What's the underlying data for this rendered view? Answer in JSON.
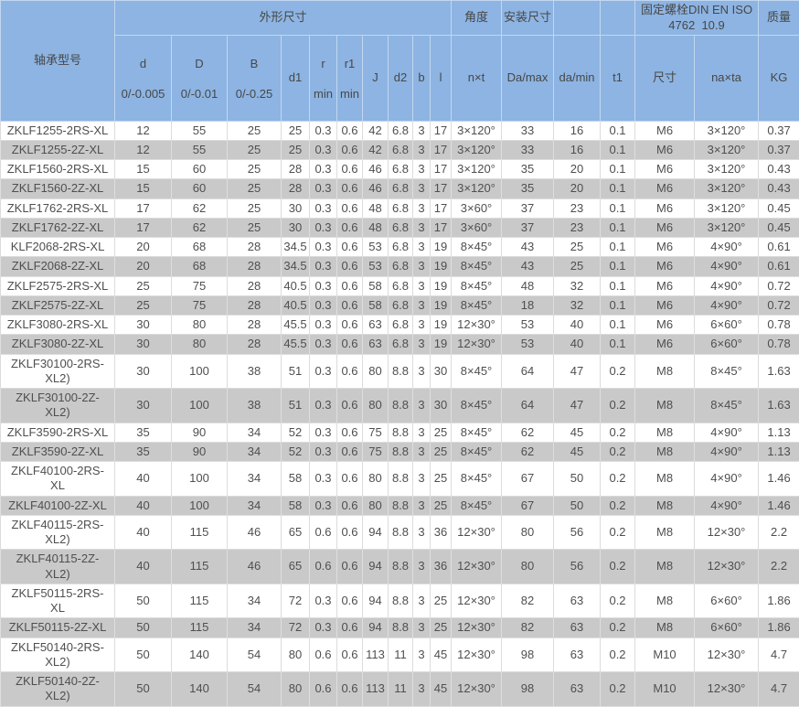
{
  "colors": {
    "header_bg": "#8db4e2",
    "row_alt_bg": "#c9c9c9"
  },
  "table": {
    "header": {
      "model": "轴承型号",
      "groups": {
        "dims": "外形尺寸",
        "angle": "角度",
        "mount": "安装尺寸",
        "blank_a": "",
        "blank_b": "",
        "bolt": "固定螺栓DIN EN ISO\n4762  10.9",
        "mass": "质量"
      },
      "cols": [
        {
          "label": "d",
          "sub": "0/-0.005"
        },
        {
          "label": "D",
          "sub": "0/-0.01"
        },
        {
          "label": "B",
          "sub": "0/-0.25"
        },
        {
          "label": "d1",
          "sub": ""
        },
        {
          "label": "r",
          "sub": "min"
        },
        {
          "label": "r1",
          "sub": "min"
        },
        {
          "label": "J",
          "sub": ""
        },
        {
          "label": "d2",
          "sub": ""
        },
        {
          "label": "b",
          "sub": ""
        },
        {
          "label": "l",
          "sub": ""
        },
        {
          "label": "n×t",
          "sub": ""
        },
        {
          "label": "Da/max",
          "sub": ""
        },
        {
          "label": "da/min",
          "sub": ""
        },
        {
          "label": "t1",
          "sub": ""
        },
        {
          "label": "尺寸",
          "sub": ""
        },
        {
          "label": "na×ta",
          "sub": ""
        },
        {
          "label": "KG",
          "sub": ""
        }
      ]
    },
    "rows": [
      [
        "ZKLF1255-2RS-XL",
        "12",
        "55",
        "25",
        "25",
        "0.3",
        "0.6",
        "42",
        "6.8",
        "3",
        "17",
        "3×120°",
        "33",
        "16",
        "0.1",
        "M6",
        "3×120°",
        "0.37"
      ],
      [
        "ZKLF1255-2Z-XL",
        "12",
        "55",
        "25",
        "25",
        "0.3",
        "0.6",
        "42",
        "6.8",
        "3",
        "17",
        "3×120°",
        "33",
        "16",
        "0.1",
        "M6",
        "3×120°",
        "0.37"
      ],
      [
        "ZKLF1560-2RS-XL",
        "15",
        "60",
        "25",
        "28",
        "0.3",
        "0.6",
        "46",
        "6.8",
        "3",
        "17",
        "3×120°",
        "35",
        "20",
        "0.1",
        "M6",
        "3×120°",
        "0.43"
      ],
      [
        "ZKLF1560-2Z-XL",
        "15",
        "60",
        "25",
        "28",
        "0.3",
        "0.6",
        "46",
        "6.8",
        "3",
        "17",
        "3×120°",
        "35",
        "20",
        "0.1",
        "M6",
        "3×120°",
        "0.43"
      ],
      [
        "ZKLF1762-2RS-XL",
        "17",
        "62",
        "25",
        "30",
        "0.3",
        "0.6",
        "48",
        "6.8",
        "3",
        "17",
        "3×60°",
        "37",
        "23",
        "0.1",
        "M6",
        "3×120°",
        "0.45"
      ],
      [
        "ZKLF1762-2Z-XL",
        "17",
        "62",
        "25",
        "30",
        "0.3",
        "0.6",
        "48",
        "6.8",
        "3",
        "17",
        "3×60°",
        "37",
        "23",
        "0.1",
        "M6",
        "3×120°",
        "0.45"
      ],
      [
        "KLF2068-2RS-XL",
        "20",
        "68",
        "28",
        "34.5",
        "0.3",
        "0.6",
        "53",
        "6.8",
        "3",
        "19",
        "8×45°",
        "43",
        "25",
        "0.1",
        "M6",
        "4×90°",
        "0.61"
      ],
      [
        "ZKLF2068-2Z-XL",
        "20",
        "68",
        "28",
        "34.5",
        "0.3",
        "0.6",
        "53",
        "6.8",
        "3",
        "19",
        "8×45°",
        "43",
        "25",
        "0.1",
        "M6",
        "4×90°",
        "0.61"
      ],
      [
        "ZKLF2575-2RS-XL",
        "25",
        "75",
        "28",
        "40.5",
        "0.3",
        "0.6",
        "58",
        "6.8",
        "3",
        "19",
        "8×45°",
        "48",
        "32",
        "0.1",
        "M6",
        "4×90°",
        "0.72"
      ],
      [
        "ZKLF2575-2Z-XL",
        "25",
        "75",
        "28",
        "40.5",
        "0.3",
        "0.6",
        "58",
        "6.8",
        "3",
        "19",
        "8×45°",
        "18",
        "32",
        "0.1",
        "M6",
        "4×90°",
        "0.72"
      ],
      [
        "ZKLF3080-2RS-XL",
        "30",
        "80",
        "28",
        "45.5",
        "0.3",
        "0.6",
        "63",
        "6.8",
        "3",
        "19",
        "12×30°",
        "53",
        "40",
        "0.1",
        "M6",
        "6×60°",
        "0.78"
      ],
      [
        "ZKLF3080-2Z-XL",
        "30",
        "80",
        "28",
        "45.5",
        "0.3",
        "0.6",
        "63",
        "6.8",
        "3",
        "19",
        "12×30°",
        "53",
        "40",
        "0.1",
        "M6",
        "6×60°",
        "0.78"
      ],
      [
        "ZKLF30100-2RS-\nXL2)",
        "30",
        "100",
        "38",
        "51",
        "0.3",
        "0.6",
        "80",
        "8.8",
        "3",
        "30",
        "8×45°",
        "64",
        "47",
        "0.2",
        "M8",
        "8×45°",
        "1.63"
      ],
      [
        "ZKLF30100-2Z-\nXL2)",
        "30",
        "100",
        "38",
        "51",
        "0.3",
        "0.6",
        "80",
        "8.8",
        "3",
        "30",
        "8×45°",
        "64",
        "47",
        "0.2",
        "M8",
        "8×45°",
        "1.63"
      ],
      [
        "ZKLF3590-2RS-XL",
        "35",
        "90",
        "34",
        "52",
        "0.3",
        "0.6",
        "75",
        "8.8",
        "3",
        "25",
        "8×45°",
        "62",
        "45",
        "0.2",
        "M8",
        "4×90°",
        "1.13"
      ],
      [
        "ZKLF3590-2Z-XL",
        "35",
        "90",
        "34",
        "52",
        "0.3",
        "0.6",
        "75",
        "8.8",
        "3",
        "25",
        "8×45°",
        "62",
        "45",
        "0.2",
        "M8",
        "4×90°",
        "1.13"
      ],
      [
        "ZKLF40100-2RS-\nXL",
        "40",
        "100",
        "34",
        "58",
        "0.3",
        "0.6",
        "80",
        "8.8",
        "3",
        "25",
        "8×45°",
        "67",
        "50",
        "0.2",
        "M8",
        "4×90°",
        "1.46"
      ],
      [
        "ZKLF40100-2Z-XL",
        "40",
        "100",
        "34",
        "58",
        "0.3",
        "0.6",
        "80",
        "8.8",
        "3",
        "25",
        "8×45°",
        "67",
        "50",
        "0.2",
        "M8",
        "4×90°",
        "1.46"
      ],
      [
        "ZKLF40115-2RS-\nXL2)",
        "40",
        "115",
        "46",
        "65",
        "0.6",
        "0.6",
        "94",
        "8.8",
        "3",
        "36",
        "12×30°",
        "80",
        "56",
        "0.2",
        "M8",
        "12×30°",
        "2.2"
      ],
      [
        "ZKLF40115-2Z-\nXL2)",
        "40",
        "115",
        "46",
        "65",
        "0.6",
        "0.6",
        "94",
        "8.8",
        "3",
        "36",
        "12×30°",
        "80",
        "56",
        "0.2",
        "M8",
        "12×30°",
        "2.2"
      ],
      [
        "ZKLF50115-2RS-\nXL",
        "50",
        "115",
        "34",
        "72",
        "0.3",
        "0.6",
        "94",
        "8.8",
        "3",
        "25",
        "12×30°",
        "82",
        "63",
        "0.2",
        "M8",
        "6×60°",
        "1.86"
      ],
      [
        "ZKLF50115-2Z-XL",
        "50",
        "115",
        "34",
        "72",
        "0.3",
        "0.6",
        "94",
        "8.8",
        "3",
        "25",
        "12×30°",
        "82",
        "63",
        "0.2",
        "M8",
        "6×60°",
        "1.86"
      ],
      [
        "ZKLF50140-2RS-\nXL2)",
        "50",
        "140",
        "54",
        "80",
        "0.6",
        "0.6",
        "113",
        "11",
        "3",
        "45",
        "12×30°",
        "98",
        "63",
        "0.2",
        "M10",
        "12×30°",
        "4.7"
      ],
      [
        "ZKLF50140-2Z-\nXL2)",
        "50",
        "140",
        "54",
        "80",
        "0.6",
        "0.6",
        "113",
        "11",
        "3",
        "45",
        "12×30°",
        "98",
        "63",
        "0.2",
        "M10",
        "12×30°",
        "4.7"
      ]
    ]
  }
}
